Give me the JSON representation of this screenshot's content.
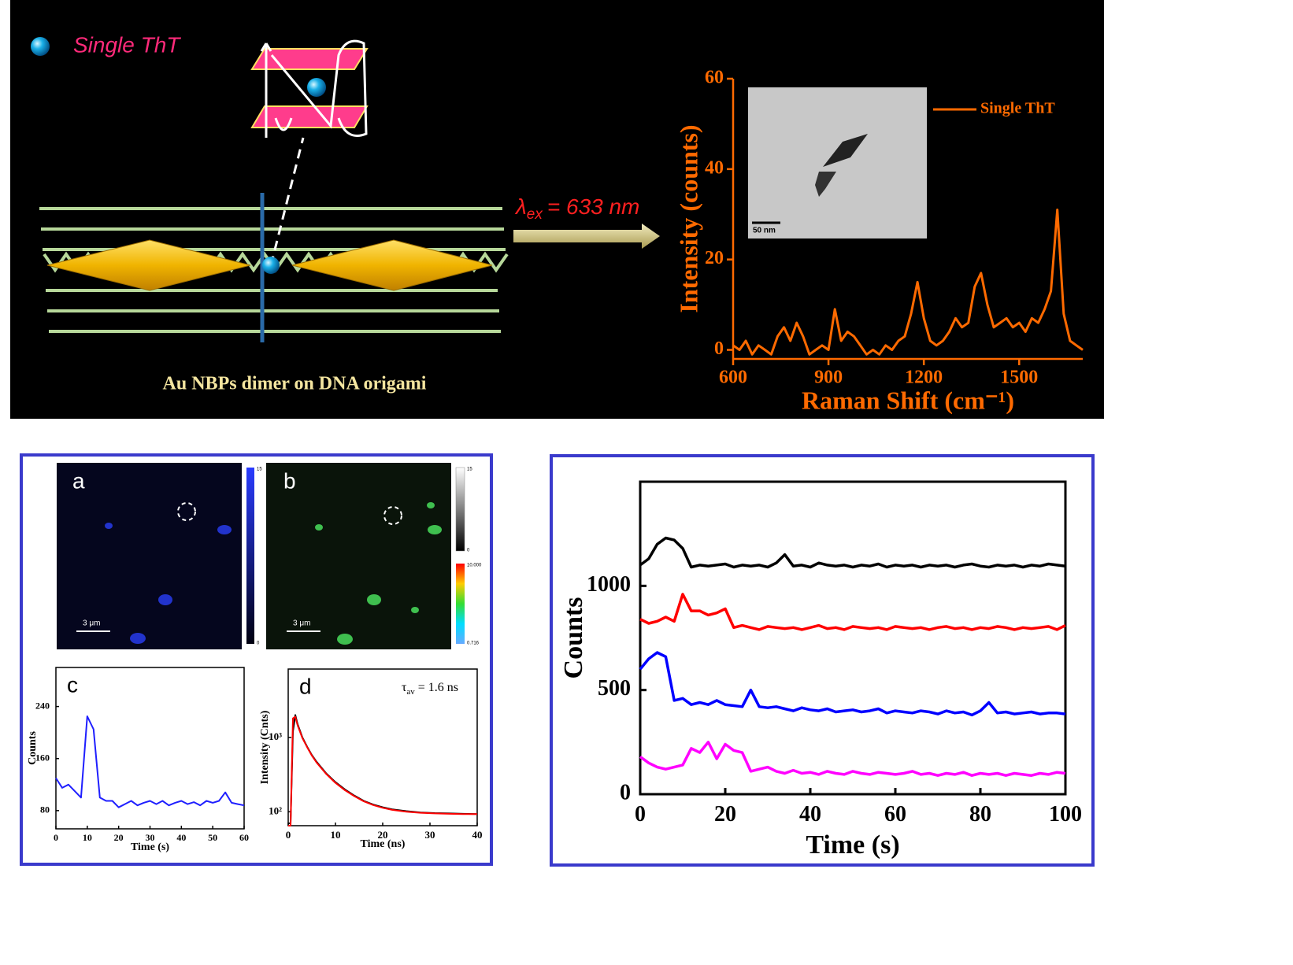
{
  "illustration": {
    "molecule_label": "Single ThT",
    "excitation": {
      "symbol": "λ",
      "subscript": "ex",
      "text": "= 633 nm"
    },
    "caption": "Au NBPs dimer on DNA origami",
    "tem_scale_bar": "50 nm"
  },
  "images": [
    {
      "label": "a",
      "scale_bar": "3 μm",
      "colorbar_labels": [
        "15",
        "0"
      ]
    },
    {
      "label": "b",
      "scale_bar": "3 μm",
      "colorbar_labels": [
        "15",
        "0",
        "10.000",
        "0.716"
      ]
    }
  ],
  "chart_data": [
    {
      "type": "line",
      "xlabel": "Raman Shift (cm⁻¹)",
      "ylabel": "Intensity (counts)",
      "x": [
        600,
        620,
        640,
        660,
        680,
        700,
        720,
        740,
        760,
        780,
        800,
        820,
        840,
        860,
        880,
        900,
        920,
        940,
        960,
        980,
        1000,
        1020,
        1040,
        1060,
        1080,
        1100,
        1120,
        1140,
        1160,
        1180,
        1200,
        1220,
        1240,
        1260,
        1280,
        1300,
        1320,
        1340,
        1360,
        1380,
        1400,
        1420,
        1440,
        1460,
        1480,
        1500,
        1520,
        1540,
        1560,
        1580,
        1600,
        1620,
        1640,
        1660,
        1680,
        1700
      ],
      "series": [
        {
          "name": "Single ThT",
          "color": "#ff6a00",
          "values": [
            1,
            0,
            2,
            -1,
            1,
            0,
            -1,
            3,
            5,
            2,
            6,
            3,
            -1,
            0,
            1,
            0,
            9,
            2,
            4,
            3,
            1,
            -1,
            0,
            -1,
            1,
            0,
            2,
            3,
            8,
            15,
            7,
            2,
            1,
            2,
            4,
            7,
            5,
            6,
            14,
            17,
            10,
            5,
            6,
            7,
            5,
            6,
            4,
            7,
            6,
            9,
            13,
            31,
            8,
            2,
            1,
            0
          ]
        }
      ],
      "xlim": [
        600,
        1700
      ],
      "ylim": [
        -2,
        60
      ],
      "xticks": [
        600,
        900,
        1200,
        1500
      ],
      "yticks": [
        0,
        20,
        40,
        60
      ],
      "legend": "upper right"
    },
    {
      "type": "line",
      "panel_label": "c",
      "xlabel": "Time (s)",
      "ylabel": "Counts",
      "x": [
        0,
        2,
        4,
        6,
        8,
        10,
        12,
        14,
        16,
        18,
        20,
        22,
        24,
        26,
        28,
        30,
        32,
        34,
        36,
        38,
        40,
        42,
        44,
        46,
        48,
        50,
        52,
        54,
        56,
        58,
        60
      ],
      "series": [
        {
          "color": "#1f1fff",
          "values": [
            130,
            115,
            120,
            110,
            100,
            225,
            205,
            100,
            95,
            95,
            85,
            90,
            95,
            88,
            92,
            95,
            90,
            95,
            88,
            92,
            95,
            90,
            93,
            88,
            95,
            92,
            95,
            108,
            92,
            90,
            88
          ]
        }
      ],
      "xlim": [
        0,
        60
      ],
      "ylim": [
        52,
        300
      ],
      "xticks": [
        0,
        10,
        20,
        30,
        40,
        50,
        60
      ],
      "yticks": [
        80,
        160,
        240
      ]
    },
    {
      "type": "line",
      "panel_label": "d",
      "xlabel": "Time (ns)",
      "ylabel": "Intensity (Cnts)",
      "annotation": {
        "symbol": "τ",
        "subscript": "av",
        "text": "= 1.6 ns"
      },
      "log_y": true,
      "x": [
        0,
        0.5,
        1,
        1.5,
        2,
        3,
        4,
        5,
        6,
        8,
        10,
        12,
        14,
        16,
        18,
        20,
        22,
        25,
        28,
        31,
        34,
        37,
        40
      ],
      "series": [
        {
          "color": "#000000",
          "values": [
            70,
            70,
            1200,
            2000,
            1500,
            1000,
            750,
            580,
            470,
            330,
            250,
            200,
            165,
            140,
            125,
            115,
            108,
            102,
            98,
            96,
            95,
            94,
            93
          ]
        },
        {
          "color": "#ff0000",
          "values": [
            65,
            65,
            1800,
            1900,
            1450,
            980,
            740,
            570,
            460,
            325,
            245,
            195,
            162,
            138,
            123,
            113,
            106,
            100,
            97,
            95,
            94,
            93,
            93
          ]
        }
      ],
      "xlim": [
        0,
        40
      ],
      "ylim": [
        65,
        8300
      ],
      "xticks": [
        0,
        10,
        20,
        30,
        40
      ],
      "yticks": [
        {
          "value": 100,
          "label": "10²"
        },
        {
          "value": 1000,
          "label": "10³"
        }
      ]
    },
    {
      "type": "line",
      "xlabel": "Time (s)",
      "ylabel": "Counts",
      "x": [
        0,
        2,
        4,
        6,
        8,
        10,
        12,
        14,
        16,
        18,
        20,
        22,
        24,
        26,
        28,
        30,
        32,
        34,
        36,
        38,
        40,
        42,
        44,
        46,
        48,
        50,
        52,
        54,
        56,
        58,
        60,
        62,
        64,
        66,
        68,
        70,
        72,
        74,
        76,
        78,
        80,
        82,
        84,
        86,
        88,
        90,
        92,
        94,
        96,
        98,
        100
      ],
      "series": [
        {
          "color": "#000000",
          "values": [
            1100,
            1130,
            1200,
            1230,
            1220,
            1180,
            1090,
            1100,
            1095,
            1100,
            1105,
            1090,
            1100,
            1095,
            1100,
            1090,
            1110,
            1150,
            1095,
            1100,
            1090,
            1110,
            1100,
            1095,
            1100,
            1090,
            1100,
            1095,
            1105,
            1090,
            1100,
            1095,
            1100,
            1090,
            1100,
            1095,
            1100,
            1090,
            1100,
            1105,
            1095,
            1090,
            1100,
            1095,
            1100,
            1090,
            1100,
            1095,
            1105,
            1100,
            1095
          ]
        },
        {
          "color": "#ff0000",
          "values": [
            840,
            820,
            830,
            850,
            830,
            960,
            880,
            880,
            860,
            870,
            890,
            800,
            810,
            800,
            790,
            805,
            800,
            795,
            800,
            790,
            800,
            810,
            795,
            800,
            790,
            805,
            800,
            795,
            800,
            790,
            805,
            800,
            795,
            800,
            790,
            800,
            805,
            795,
            800,
            790,
            800,
            795,
            805,
            800,
            790,
            800,
            795,
            800,
            805,
            790,
            810
          ]
        },
        {
          "color": "#0000ff",
          "values": [
            600,
            650,
            680,
            660,
            450,
            460,
            430,
            440,
            430,
            450,
            430,
            425,
            420,
            500,
            420,
            415,
            420,
            410,
            400,
            415,
            405,
            400,
            410,
            395,
            400,
            405,
            395,
            400,
            410,
            390,
            400,
            395,
            390,
            400,
            395,
            385,
            400,
            390,
            395,
            380,
            400,
            440,
            390,
            395,
            385,
            390,
            395,
            385,
            390,
            390,
            385
          ]
        },
        {
          "color": "#ff00ff",
          "values": [
            180,
            150,
            130,
            120,
            130,
            140,
            220,
            200,
            250,
            170,
            240,
            210,
            200,
            110,
            120,
            130,
            110,
            100,
            115,
            100,
            105,
            95,
            110,
            100,
            95,
            110,
            100,
            95,
            105,
            100,
            95,
            100,
            110,
            95,
            100,
            90,
            100,
            95,
            105,
            90,
            100,
            95,
            100,
            90,
            100,
            95,
            90,
            100,
            95,
            105,
            100
          ]
        }
      ],
      "xlim": [
        0,
        100
      ],
      "ylim": [
        0,
        1500
      ],
      "xticks": [
        0,
        20,
        40,
        60,
        80,
        100
      ],
      "yticks": [
        0,
        500,
        1000
      ]
    }
  ]
}
